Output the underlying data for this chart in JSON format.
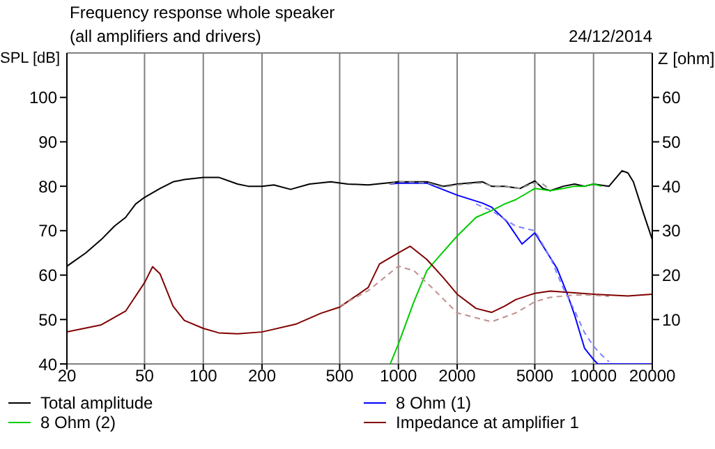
{
  "chart_data": {
    "type": "line",
    "title": "Frequency response whole speaker",
    "subtitle": "(all amplifiers and drivers)",
    "annotations": [
      "24/12/2014"
    ],
    "ylabel": "SPL [dB]",
    "y2label": "Z [ohm]",
    "log": "x",
    "grid": true,
    "legend": "bottom",
    "marker": "none",
    "xlim": [
      20,
      20000
    ],
    "xticks": [
      20,
      50,
      100,
      200,
      500,
      1000,
      2000,
      5000,
      10000,
      20000
    ],
    "ylim": [
      40,
      110
    ],
    "yticks": [
      40,
      50,
      60,
      70,
      80,
      90,
      100
    ],
    "y2lim": [
      0,
      70
    ],
    "y2ticks": [
      10,
      20,
      30,
      40,
      50,
      60
    ],
    "series": [
      {
        "name": "Total amplitude",
        "color": "#000000",
        "line_style": "solid",
        "x": [
          20,
          25,
          30,
          35,
          40,
          45,
          50,
          60,
          70,
          80,
          100,
          120,
          150,
          170,
          200,
          230,
          280,
          350,
          450,
          550,
          700,
          1000,
          1400,
          1700,
          2000,
          2700,
          3000,
          3500,
          4200,
          5000,
          5500,
          6000,
          7000,
          8000,
          9000,
          10000,
          12000,
          14000,
          15000,
          16000,
          18000,
          20000
        ],
        "values": [
          62,
          65,
          68,
          71,
          73,
          76,
          77.5,
          79.5,
          81,
          81.5,
          82,
          82,
          80.5,
          80,
          80,
          80.3,
          79.3,
          80.5,
          81,
          80.5,
          80.3,
          81,
          81,
          80,
          80.5,
          81,
          80,
          80,
          79.5,
          81.2,
          79.5,
          79,
          80,
          80.5,
          80,
          80.5,
          80,
          83.5,
          83,
          81,
          74,
          68
        ]
      },
      {
        "name": "8 Ohm (1)",
        "color": "#0000ff",
        "line_style": "solid",
        "x": [
          900,
          1000,
          1400,
          1530,
          2000,
          2700,
          3000,
          3600,
          4300,
          5000,
          5700,
          6500,
          7300,
          8000,
          9000,
          10000,
          10500,
          20000
        ],
        "values": [
          80.5,
          80.7,
          80.7,
          80,
          78,
          76.2,
          75.3,
          72,
          67,
          69.5,
          65.5,
          61.5,
          56,
          51,
          43.5,
          41,
          40,
          40
        ]
      },
      {
        "name": "8 Ohm (2)",
        "color": "#00cc00",
        "line_style": "solid",
        "x": [
          908,
          1000,
          1200,
          1400,
          1600,
          2000,
          2500,
          3000,
          3500,
          4000,
          5000,
          6000,
          7000,
          8000,
          9000,
          10000,
          11000
        ],
        "values": [
          40,
          44.5,
          54,
          61,
          64,
          68.8,
          73,
          74.5,
          76,
          77,
          79.5,
          79,
          79.5,
          80,
          80,
          80.5,
          80
        ]
      },
      {
        "name": "Impedance at amplifier 1",
        "color": "#800000",
        "line_style": "solid",
        "axis": "y2",
        "x": [
          20,
          30,
          40,
          50,
          55,
          60,
          70,
          80,
          100,
          120,
          150,
          200,
          300,
          400,
          500,
          700,
          800,
          1000,
          1150,
          1400,
          1700,
          2000,
          2500,
          3000,
          3500,
          4000,
          5000,
          6000,
          8000,
          10000,
          15000,
          20000
        ],
        "values": [
          7.2,
          8.8,
          11.9,
          18.3,
          21.9,
          20.3,
          13,
          9.8,
          8,
          7,
          6.8,
          7.2,
          9,
          11.4,
          12.8,
          17.2,
          22.5,
          25,
          26.5,
          23.5,
          19.4,
          15.7,
          12.5,
          11.6,
          13,
          14.5,
          15.9,
          16.4,
          16,
          15.7,
          15.3,
          15.7
        ]
      },
      {
        "color": "#909090",
        "line_style": "dashed",
        "x": [
          900,
          1000,
          1400,
          1700,
          2000,
          2700,
          3000,
          3500,
          4200,
          5000,
          5500,
          6000
        ],
        "values": [
          80.5,
          81,
          80.8,
          79.8,
          80.3,
          80.8,
          80,
          80,
          79.5,
          80.8,
          80.5,
          79.2
        ]
      },
      {
        "color": "#8080ff",
        "line_style": "dashed",
        "x": [
          2500,
          3000,
          4000,
          5000,
          6000,
          7000,
          8000,
          9000,
          10000,
          11000,
          12000
        ],
        "values": [
          76,
          74.5,
          71,
          70,
          64,
          57,
          52,
          47,
          44,
          42,
          40.5
        ]
      },
      {
        "color": "#c09090",
        "line_style": "dashed",
        "axis": "y2",
        "x": [
          500,
          700,
          1000,
          1200,
          1500,
          2000,
          3000,
          4000,
          5000,
          6000,
          8000,
          10000,
          12000
        ],
        "values": [
          13,
          16.5,
          22,
          21,
          17,
          11.5,
          9.5,
          11.5,
          14,
          15,
          15.5,
          15.5,
          15.2
        ]
      }
    ]
  }
}
